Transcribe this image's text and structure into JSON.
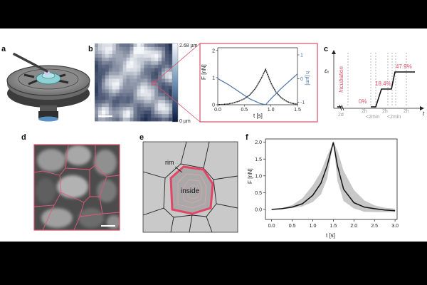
{
  "panels": {
    "a": {
      "label": "a"
    },
    "b": {
      "label": "b",
      "colorbar_max": "2.68 µm",
      "colorbar_min": "0 µm",
      "inset": {
        "chart_type": "line",
        "y_left_label": "F [nN]",
        "y_right_label": "h [µm]",
        "x_label": "t [s]",
        "x_ticks": [
          "0.0",
          "0.5",
          "1.0",
          "1.5"
        ],
        "y_left_ticks": [
          "0",
          "1",
          "2"
        ],
        "y_right_ticks": [
          "1",
          "0",
          "-1"
        ],
        "colors": {
          "force": "#111111",
          "height": "#4a74a8",
          "frame": "#d9506a"
        }
      }
    },
    "c": {
      "label": "c",
      "y_label": "εₓ",
      "x_label": "t",
      "incubation_text": "Incubation",
      "percent_labels": [
        "0%",
        "18.4%",
        "47.9%"
      ],
      "time_labels": [
        "2d",
        "2h",
        "<2min",
        "2h",
        "<2min",
        "2h"
      ],
      "colors": {
        "strain": "#111111",
        "annotation": "#d9506a",
        "time": "#aaaaaa"
      }
    },
    "d": {
      "label": "d"
    },
    "e": {
      "label": "e",
      "rim_label": "rim",
      "inside_label": "inside"
    },
    "f": {
      "label": "f"
    }
  },
  "chart_data": [
    {
      "type": "line",
      "panel": "b-inset",
      "xlabel": "t [s]",
      "ylabel": "F [nN]",
      "ylabel_right": "h [µm]",
      "xlim": [
        0.0,
        1.5
      ],
      "ylim": [
        0.0,
        2.1
      ],
      "ylim_right": [
        -1.1,
        1.3
      ],
      "series": [
        {
          "values_x": [
            0.0,
            0.1,
            0.2,
            0.3,
            0.4,
            0.5,
            0.6,
            0.7,
            0.8,
            0.85,
            0.9,
            1.0,
            1.1,
            1.2,
            1.3,
            1.4,
            1.5
          ],
          "values_y": [
            0.0,
            0.01,
            0.03,
            0.07,
            0.13,
            0.22,
            0.36,
            0.58,
            0.9,
            1.1,
            1.3,
            0.8,
            0.45,
            0.25,
            0.12,
            0.05,
            0.02
          ]
        },
        {
          "axis": "right",
          "values_x": [
            0.0,
            0.2,
            0.4,
            0.6,
            0.8,
            0.9,
            1.0,
            1.2,
            1.4,
            1.5
          ],
          "values_y": [
            0.0,
            -0.25,
            -0.55,
            -0.85,
            -1.05,
            -1.1,
            -0.85,
            -0.4,
            0.0,
            0.2
          ]
        }
      ]
    },
    {
      "type": "line",
      "panel": "f",
      "xlabel": "t [s]",
      "ylabel": "F [nN]",
      "xlim": [
        -0.15,
        3.05
      ],
      "ylim": [
        -0.3,
        2.1
      ],
      "x_ticks": [
        "0.0",
        "0.5",
        "1.0",
        "1.5",
        "2.0",
        "2.5",
        "3.0"
      ],
      "y_ticks": [
        "0.0",
        "0.5",
        "1.0",
        "1.5",
        "2.0"
      ],
      "grid": false,
      "series": [
        {
          "x": [
            0.0,
            0.25,
            0.5,
            0.75,
            1.0,
            1.2,
            1.35,
            1.5,
            1.6,
            1.75,
            2.0,
            2.25,
            2.5,
            2.75,
            3.0
          ],
          "y": [
            0.0,
            0.02,
            0.07,
            0.17,
            0.42,
            0.78,
            1.3,
            2.0,
            1.3,
            0.6,
            0.2,
            0.07,
            0.02,
            -0.02,
            -0.04
          ],
          "band_low": [
            0.0,
            0.01,
            0.04,
            0.09,
            0.22,
            0.45,
            0.92,
            2.0,
            0.85,
            0.25,
            0.03,
            -0.07,
            -0.08,
            -0.08,
            -0.08
          ],
          "band_high": [
            0.0,
            0.04,
            0.13,
            0.33,
            0.72,
            1.12,
            1.6,
            2.0,
            1.75,
            1.15,
            0.58,
            0.27,
            0.12,
            0.05,
            0.02
          ]
        }
      ]
    }
  ]
}
